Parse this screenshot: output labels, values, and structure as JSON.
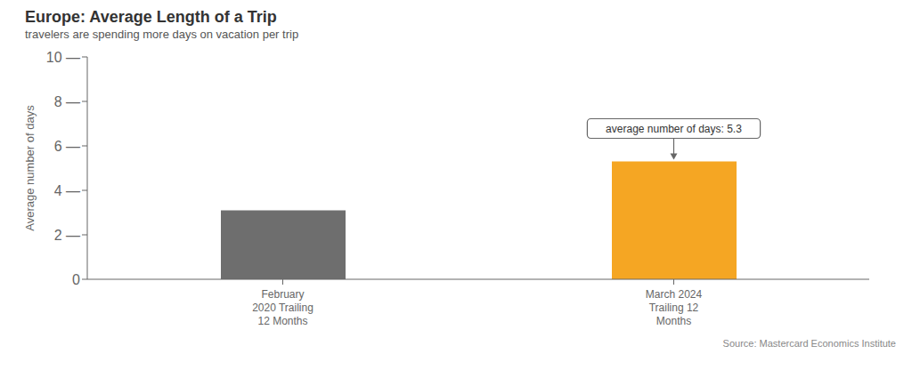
{
  "chart_data": {
    "type": "bar",
    "title": "Europe: Average Length of a Trip",
    "subtitle": "travelers are spending more days on vacation per trip",
    "ylabel": "Average number of days",
    "source": "Source: Mastercard Economics Institute",
    "categories": [
      "February\n2020 Trailing\n12 Months",
      "March 2024\nTrailing 12\nMonths"
    ],
    "values": [
      3.1,
      5.3
    ],
    "colors": [
      "#6e6e6e",
      "#f5a623"
    ],
    "ylim": [
      0,
      10
    ],
    "yticks": [
      0,
      {
        "value": 2,
        "label": "2 —"
      },
      {
        "value": 4,
        "label": "4 —"
      },
      {
        "value": 6,
        "label": "6 —"
      },
      {
        "value": 8,
        "label": "8 —"
      },
      {
        "value": 10,
        "label": "10 —"
      }
    ],
    "grid": false,
    "annotations": [
      {
        "text": "average number of days: 5.3",
        "category": "March 2024\nTrailing 12\nMonths",
        "value": 5.3
      }
    ]
  }
}
